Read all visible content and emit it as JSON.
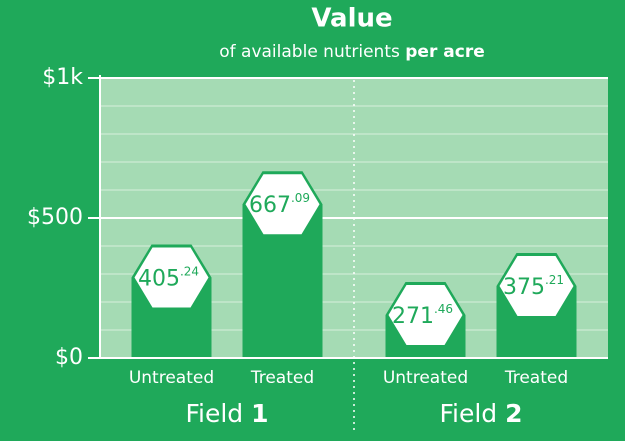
{
  "chart_data": {
    "type": "bar",
    "title": "Value",
    "subtitle": {
      "text": "of available nutrients",
      "bold": "per acre"
    },
    "categories": [
      "Untreated",
      "Treated",
      "Untreated",
      "Treated"
    ],
    "groups": [
      "Field 1",
      "Field 2"
    ],
    "values": [
      405.24,
      667.09,
      271.46,
      375.21
    ],
    "value_labels": [
      "405.24",
      "667.09",
      "271.46",
      "375.21"
    ],
    "color": "#1fa95a",
    "ylim": [
      0,
      1000
    ],
    "yticks": [
      {
        "value": 0,
        "label": "$0"
      },
      {
        "value": 500,
        "label": "$500"
      },
      {
        "value": 1000,
        "label": "$1k"
      }
    ],
    "minor_yticks": [
      100,
      200,
      300,
      400,
      600,
      700,
      800,
      900
    ],
    "grid": true
  }
}
